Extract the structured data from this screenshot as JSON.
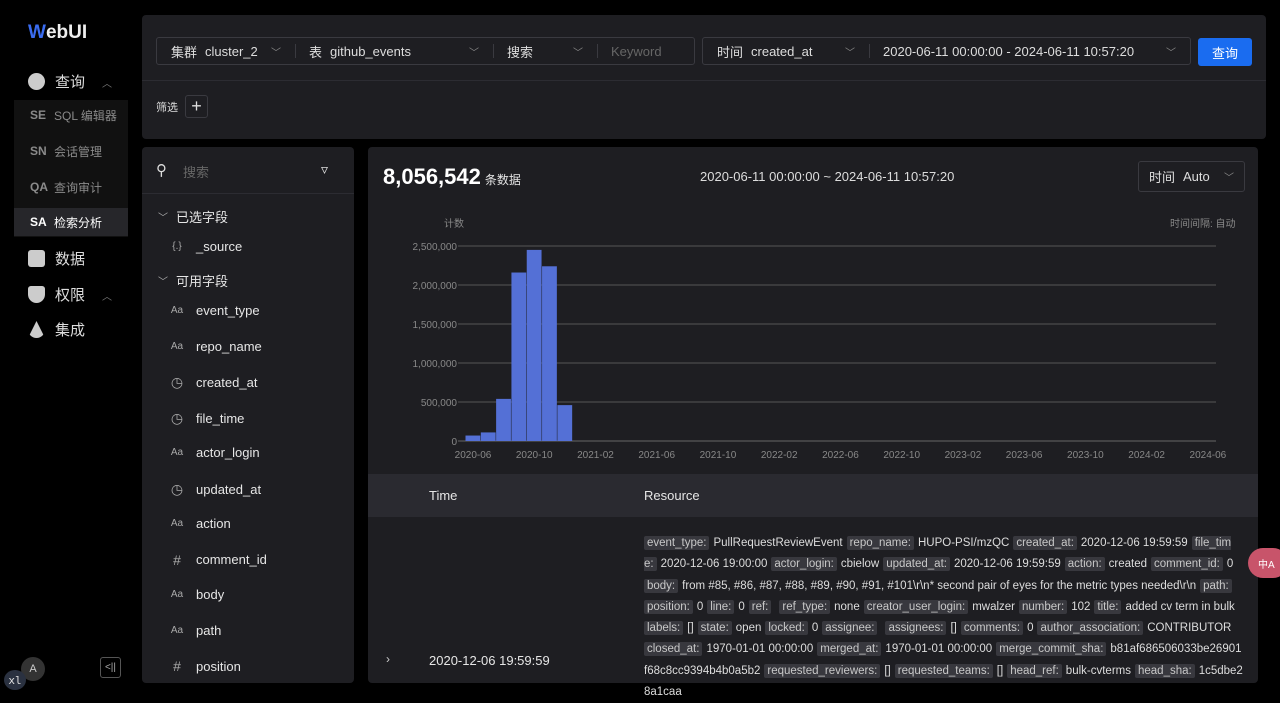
{
  "app": {
    "logo": "WebUI"
  },
  "sidebar": {
    "items": [
      {
        "label": "查询",
        "icon": "code-query-icon"
      },
      {
        "label": "数据",
        "icon": "server-icon"
      },
      {
        "label": "权限",
        "icon": "shield-user-icon"
      },
      {
        "label": "集成",
        "icon": "integration-icon"
      }
    ],
    "submenu": [
      {
        "code": "SE",
        "label": "SQL 编辑器"
      },
      {
        "code": "SN",
        "label": "会话管理"
      },
      {
        "code": "QA",
        "label": "查询审计"
      },
      {
        "code": "SA",
        "label": "检索分析",
        "active": true
      }
    ],
    "avatar": "A",
    "badge": "xl"
  },
  "toolbar": {
    "cluster_label": "集群",
    "cluster_value": "cluster_2",
    "table_label": "表",
    "table_value": "github_events",
    "search_mode": "搜索",
    "keyword_placeholder": "Keyword",
    "time_label": "时间",
    "time_field": "created_at",
    "time_range": "2020-06-11 00:00:00 - 2024-06-11 10:57:20",
    "query_button": "查询",
    "filter_label": "筛选"
  },
  "fields": {
    "search_placeholder": "搜索",
    "selected_title": "已选字段",
    "selected": [
      {
        "type": "{.}",
        "name": "_source"
      }
    ],
    "available_title": "可用字段",
    "available": [
      {
        "type": "Aa",
        "name": "event_type"
      },
      {
        "type": "Aa",
        "name": "repo_name"
      },
      {
        "type": "clock",
        "name": "created_at"
      },
      {
        "type": "clock",
        "name": "file_time"
      },
      {
        "type": "Aa",
        "name": "actor_login"
      },
      {
        "type": "clock",
        "name": "updated_at"
      },
      {
        "type": "Aa",
        "name": "action"
      },
      {
        "type": "#",
        "name": "comment_id"
      },
      {
        "type": "Aa",
        "name": "body"
      },
      {
        "type": "Aa",
        "name": "path"
      },
      {
        "type": "#",
        "name": "position"
      }
    ]
  },
  "summary": {
    "count": "8,056,542",
    "count_unit": "条数据",
    "range": "2020-06-11 00:00:00 ~ 2024-06-11 10:57:20",
    "interval_label": "时间",
    "interval_value": "Auto",
    "interval_note": "时间间隔: 自动"
  },
  "chart_data": {
    "type": "bar",
    "ylabel": "计数",
    "ylim": [
      0,
      2500000
    ],
    "grid": true,
    "color": "#5470d6",
    "yticks": [
      "0",
      "500,000",
      "1,000,000",
      "1,500,000",
      "2,000,000",
      "2,500,000"
    ],
    "xticks": [
      "2020-06",
      "2020-10",
      "2021-02",
      "2021-06",
      "2021-10",
      "2022-02",
      "2022-06",
      "2022-10",
      "2023-02",
      "2023-06",
      "2023-10",
      "2024-02",
      "2024-06"
    ],
    "categories": [
      "2020-06",
      "2020-07",
      "2020-08",
      "2020-09",
      "2020-10",
      "2020-11",
      "2020-12"
    ],
    "values": [
      70000,
      110000,
      540000,
      2160000,
      2450000,
      2240000,
      460000
    ]
  },
  "table": {
    "columns": [
      "Time",
      "Resource"
    ],
    "rows": [
      {
        "time": "2020-12-06 19:59:59",
        "resource": [
          [
            "event_type:",
            "PullRequestReviewEvent"
          ],
          [
            "repo_name:",
            "HUPO-PSI/mzQC"
          ],
          [
            "created_at:",
            "2020-12-06 19:59:59"
          ],
          [
            "file_time:",
            "2020-12-06 19:00:00"
          ],
          [
            "actor_login:",
            "cbielow"
          ],
          [
            "updated_at:",
            "2020-12-06 19:59:59"
          ],
          [
            "action:",
            "created"
          ],
          [
            "comment_id:",
            "0"
          ],
          [
            "body:",
            "from #85, #86, #87, #88, #89, #90, #91, #101\\r\\n* second pair of eyes for the metric types needed\\r\\n"
          ],
          [
            "path:",
            ""
          ],
          [
            "position:",
            "0"
          ],
          [
            "line:",
            "0"
          ],
          [
            "ref:",
            ""
          ],
          [
            "ref_type:",
            "none"
          ],
          [
            "creator_user_login:",
            "mwalzer"
          ],
          [
            "number:",
            "102"
          ],
          [
            "title:",
            "added cv term in bulk"
          ],
          [
            "labels:",
            "[]"
          ],
          [
            "state:",
            "open"
          ],
          [
            "locked:",
            "0"
          ],
          [
            "assignee:",
            ""
          ],
          [
            "assignees:",
            "[]"
          ],
          [
            "comments:",
            "0"
          ],
          [
            "author_association:",
            "CONTRIBUTOR"
          ],
          [
            "closed_at:",
            "1970-01-01 00:00:00"
          ],
          [
            "merged_at:",
            "1970-01-01 00:00:00"
          ],
          [
            "merge_commit_sha:",
            "b81af686506033be26901f68c8cc9394b4b0a5b2"
          ],
          [
            "requested_reviewers:",
            "[]"
          ],
          [
            "requested_teams:",
            "[]"
          ],
          [
            "head_ref:",
            "bulk-cvterms"
          ],
          [
            "head_sha:",
            "1c5dbe28a1caa"
          ]
        ]
      }
    ]
  }
}
